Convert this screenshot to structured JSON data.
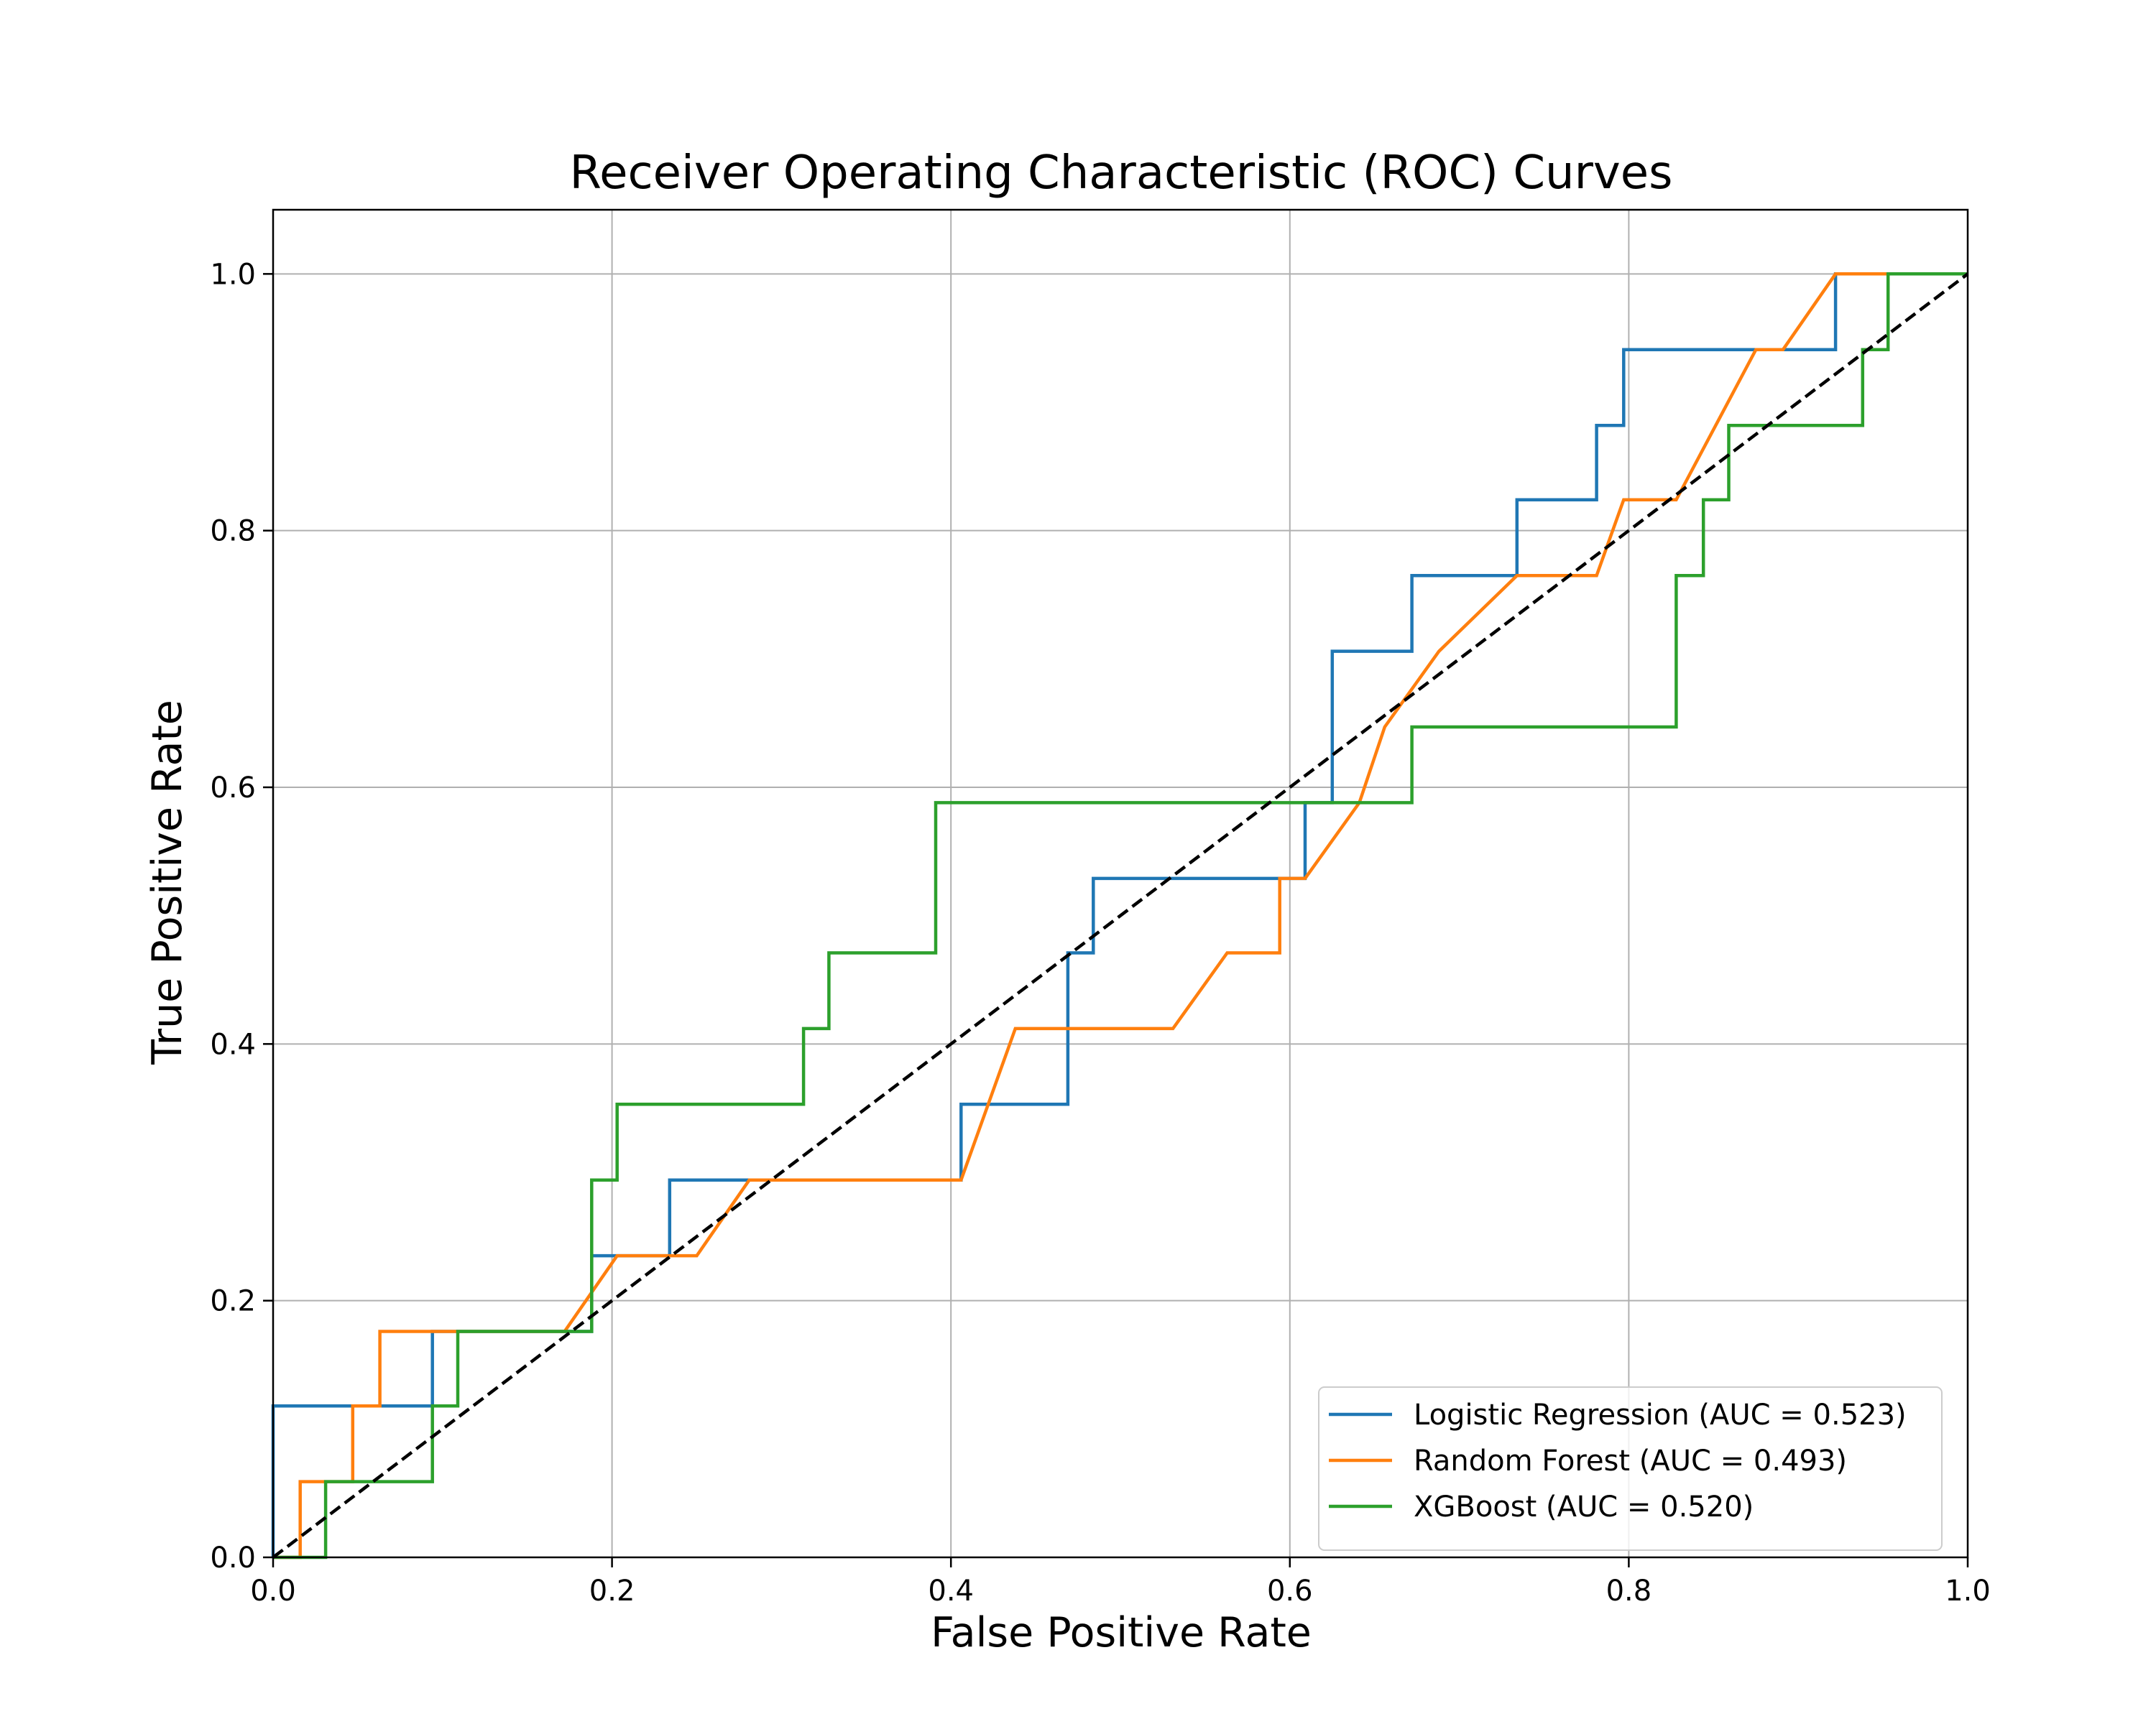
{
  "chart_data": {
    "type": "line",
    "title": "Receiver Operating Characteristic (ROC) Curves",
    "xlabel": "False Positive Rate",
    "ylabel": "True Positive Rate",
    "xlim": [
      0.0,
      1.0
    ],
    "ylim": [
      0.0,
      1.05
    ],
    "x_ticks": [
      "0.0",
      "0.2",
      "0.4",
      "0.6",
      "0.8",
      "1.0"
    ],
    "y_ticks": [
      "0.0",
      "0.2",
      "0.4",
      "0.6",
      "0.8",
      "1.0"
    ],
    "grid": true,
    "legend_position": "lower-right",
    "series": [
      {
        "name": "Logistic Regression (AUC = 0.523)",
        "color": "#1f77b4",
        "x": [
          0.0,
          0.0,
          0.094,
          0.094,
          0.188,
          0.188,
          0.234,
          0.234,
          0.406,
          0.406,
          0.469,
          0.469,
          0.484,
          0.484,
          0.609,
          0.609,
          0.625,
          0.625,
          0.672,
          0.672,
          0.734,
          0.734,
          0.781,
          0.781,
          0.797,
          0.797,
          0.922,
          0.922,
          1.0
        ],
        "y": [
          0.0,
          0.118,
          0.118,
          0.176,
          0.176,
          0.235,
          0.235,
          0.294,
          0.294,
          0.353,
          0.353,
          0.471,
          0.471,
          0.529,
          0.529,
          0.588,
          0.588,
          0.706,
          0.706,
          0.765,
          0.765,
          0.824,
          0.824,
          0.882,
          0.882,
          0.941,
          0.941,
          1.0,
          1.0
        ]
      },
      {
        "name": "Random Forest (AUC = 0.493)",
        "color": "#ff7f0e",
        "x": [
          0.0,
          0.0,
          0.016,
          0.016,
          0.031,
          0.047,
          0.047,
          0.063,
          0.063,
          0.172,
          0.203,
          0.25,
          0.281,
          0.406,
          0.438,
          0.531,
          0.563,
          0.594,
          0.594,
          0.609,
          0.641,
          0.656,
          0.688,
          0.734,
          0.781,
          0.797,
          0.828,
          0.875,
          0.891,
          0.922,
          1.0
        ],
        "y": [
          0.0,
          0.0,
          0.0,
          0.059,
          0.059,
          0.059,
          0.118,
          0.118,
          0.176,
          0.176,
          0.235,
          0.235,
          0.294,
          0.294,
          0.412,
          0.412,
          0.471,
          0.471,
          0.529,
          0.529,
          0.588,
          0.647,
          0.706,
          0.765,
          0.765,
          0.824,
          0.824,
          0.941,
          0.941,
          1.0,
          1.0
        ]
      },
      {
        "name": "XGBoost (AUC = 0.520)",
        "color": "#2ca02c",
        "x": [
          0.0,
          0.031,
          0.031,
          0.094,
          0.094,
          0.109,
          0.109,
          0.188,
          0.188,
          0.203,
          0.203,
          0.313,
          0.313,
          0.328,
          0.328,
          0.391,
          0.391,
          0.672,
          0.672,
          0.828,
          0.828,
          0.844,
          0.844,
          0.859,
          0.859,
          0.938,
          0.938,
          0.953,
          0.953,
          1.0
        ],
        "y": [
          0.0,
          0.0,
          0.059,
          0.059,
          0.118,
          0.118,
          0.176,
          0.176,
          0.294,
          0.294,
          0.353,
          0.353,
          0.412,
          0.412,
          0.471,
          0.471,
          0.588,
          0.588,
          0.647,
          0.647,
          0.765,
          0.765,
          0.824,
          0.824,
          0.882,
          0.882,
          0.941,
          0.941,
          1.0,
          1.0
        ]
      },
      {
        "color": "#000000",
        "style": "dashed",
        "x": [
          0.0,
          1.0
        ],
        "y": [
          0.0,
          1.0
        ]
      }
    ]
  }
}
